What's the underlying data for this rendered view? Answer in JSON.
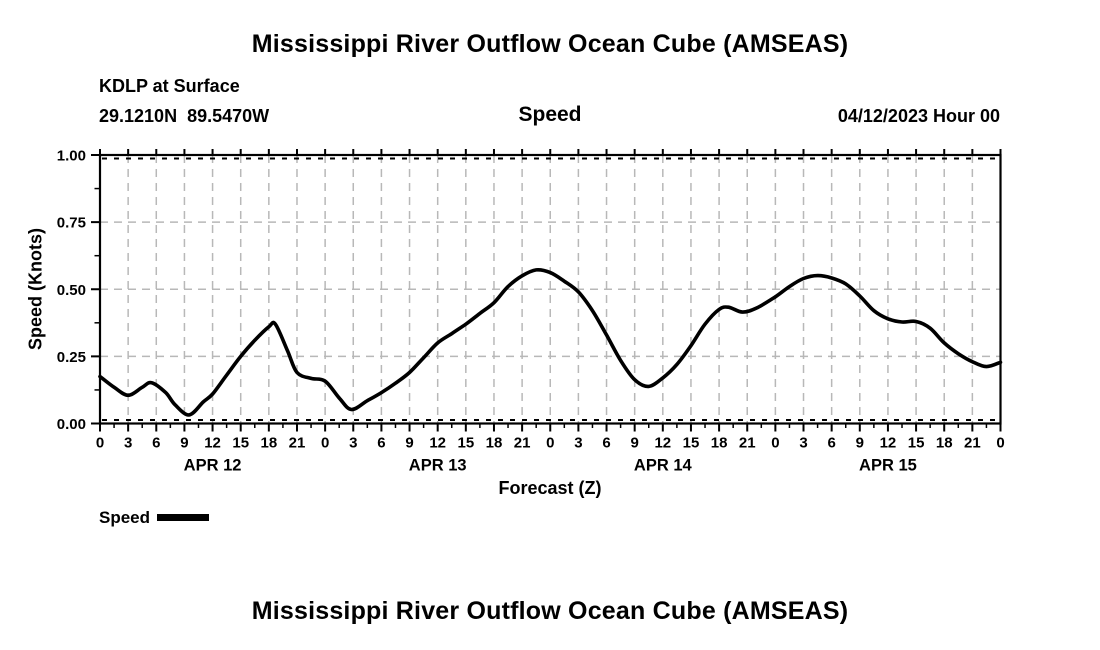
{
  "page": {
    "background": "#ffffff"
  },
  "header": {
    "title": "Mississippi River Outflow Ocean Cube (AMSEAS)",
    "station": "KDLP at Surface",
    "coordinates": "29.1210N  89.5470W",
    "panel_label": "Speed",
    "datetime": "04/12/2023 Hour 00"
  },
  "footer": {
    "title": "Mississippi River Outflow Ocean Cube (AMSEAS)"
  },
  "legend": {
    "label": "Speed",
    "swatch_color": "#000000"
  },
  "chart_data": {
    "type": "line",
    "title": "Speed",
    "xlabel": "Forecast (Z)",
    "ylabel": "Speed (Knots)",
    "ylim": [
      0.0,
      1.0
    ],
    "yticks": [
      0.0,
      0.25,
      0.5,
      0.75,
      1.0
    ],
    "ytick_labels": [
      "0.00",
      "0.25",
      "0.50",
      "0.75",
      "1.00"
    ],
    "y_minor_step": 0.125,
    "xlim_hours": [
      0,
      96
    ],
    "xtick_interval_hours": 3,
    "x_minor_interval_hours": 1.5,
    "xtick_labels": [
      "0",
      "3",
      "6",
      "9",
      "12",
      "15",
      "18",
      "21",
      "0",
      "3",
      "6",
      "9",
      "12",
      "15",
      "18",
      "21",
      "0",
      "3",
      "6",
      "9",
      "12",
      "15",
      "18",
      "21",
      "0",
      "3",
      "6",
      "9",
      "12",
      "15",
      "18",
      "21",
      "0"
    ],
    "day_labels": [
      {
        "label": "APR 12",
        "center_hour": 12
      },
      {
        "label": "APR 13",
        "center_hour": 36
      },
      {
        "label": "APR 14",
        "center_hour": 60
      },
      {
        "label": "APR 15",
        "center_hour": 84
      }
    ],
    "grid": true,
    "grid_color": "#b8b8b8",
    "line_color": "#000000",
    "series": [
      {
        "name": "Speed",
        "units": "Knots",
        "points": [
          [
            0,
            0.175
          ],
          [
            1.5,
            0.135
          ],
          [
            3,
            0.105
          ],
          [
            4.5,
            0.135
          ],
          [
            5.5,
            0.152
          ],
          [
            7,
            0.115
          ],
          [
            8,
            0.07
          ],
          [
            9.5,
            0.032
          ],
          [
            11,
            0.08
          ],
          [
            12,
            0.11
          ],
          [
            13.5,
            0.18
          ],
          [
            15,
            0.25
          ],
          [
            16.5,
            0.31
          ],
          [
            18,
            0.36
          ],
          [
            18.7,
            0.37
          ],
          [
            20,
            0.27
          ],
          [
            21,
            0.19
          ],
          [
            22.5,
            0.168
          ],
          [
            24,
            0.158
          ],
          [
            25.5,
            0.095
          ],
          [
            26.8,
            0.052
          ],
          [
            28.5,
            0.085
          ],
          [
            30,
            0.115
          ],
          [
            31.5,
            0.15
          ],
          [
            33,
            0.19
          ],
          [
            34.5,
            0.245
          ],
          [
            36,
            0.3
          ],
          [
            37.5,
            0.335
          ],
          [
            39,
            0.37
          ],
          [
            40.5,
            0.41
          ],
          [
            42,
            0.45
          ],
          [
            43.5,
            0.51
          ],
          [
            45,
            0.55
          ],
          [
            46.5,
            0.572
          ],
          [
            48,
            0.562
          ],
          [
            49.5,
            0.53
          ],
          [
            51,
            0.49
          ],
          [
            52.5,
            0.42
          ],
          [
            54,
            0.33
          ],
          [
            55.5,
            0.235
          ],
          [
            57,
            0.163
          ],
          [
            58.5,
            0.138
          ],
          [
            60,
            0.17
          ],
          [
            61.5,
            0.22
          ],
          [
            63,
            0.29
          ],
          [
            64.5,
            0.37
          ],
          [
            66,
            0.425
          ],
          [
            67,
            0.433
          ],
          [
            68.5,
            0.415
          ],
          [
            70,
            0.43
          ],
          [
            72,
            0.472
          ],
          [
            73.5,
            0.51
          ],
          [
            75,
            0.54
          ],
          [
            76.5,
            0.551
          ],
          [
            78,
            0.542
          ],
          [
            79.5,
            0.52
          ],
          [
            81,
            0.475
          ],
          [
            82.5,
            0.42
          ],
          [
            84,
            0.39
          ],
          [
            85.5,
            0.378
          ],
          [
            87,
            0.38
          ],
          [
            88.5,
            0.355
          ],
          [
            90,
            0.3
          ],
          [
            91.5,
            0.26
          ],
          [
            93,
            0.23
          ],
          [
            94.5,
            0.212
          ],
          [
            96,
            0.228
          ]
        ]
      }
    ]
  }
}
